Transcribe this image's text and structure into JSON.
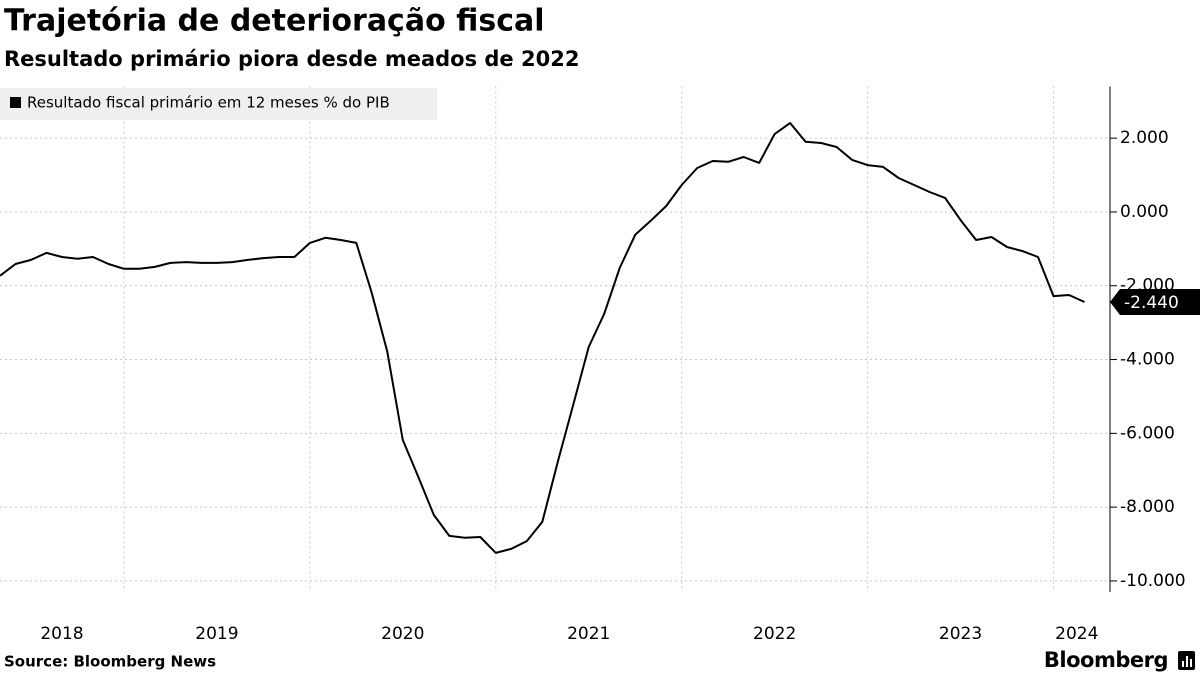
{
  "chart_data": {
    "type": "line",
    "title": "Trajetória de deterioração fiscal",
    "subtitle": "Resultado primário piora desde meados de 2022",
    "source": "Source: Bloomberg News",
    "brand": "Bloomberg",
    "legend_position": "upper left",
    "grid": true,
    "x": [
      "2018-05",
      "2018-06",
      "2018-07",
      "2018-08",
      "2018-09",
      "2018-10",
      "2018-11",
      "2018-12",
      "2019-01",
      "2019-02",
      "2019-03",
      "2019-04",
      "2019-05",
      "2019-06",
      "2019-07",
      "2019-08",
      "2019-09",
      "2019-10",
      "2019-11",
      "2019-12",
      "2020-01",
      "2020-02",
      "2020-03",
      "2020-04",
      "2020-05",
      "2020-06",
      "2020-07",
      "2020-08",
      "2020-09",
      "2020-10",
      "2020-11",
      "2020-12",
      "2021-01",
      "2021-02",
      "2021-03",
      "2021-04",
      "2021-05",
      "2021-06",
      "2021-07",
      "2021-08",
      "2021-09",
      "2021-10",
      "2021-11",
      "2021-12",
      "2022-01",
      "2022-02",
      "2022-03",
      "2022-04",
      "2022-05",
      "2022-06",
      "2022-07",
      "2022-08",
      "2022-09",
      "2022-10",
      "2022-11",
      "2022-12",
      "2023-01",
      "2023-02",
      "2023-03",
      "2023-04",
      "2023-05",
      "2023-06",
      "2023-07",
      "2023-08",
      "2023-09",
      "2023-10",
      "2023-11",
      "2023-12",
      "2024-01",
      "2024-02",
      "2024-03"
    ],
    "series": [
      {
        "name": "Resultado fiscal primário em 12 meses % do PIB",
        "color": "#000000",
        "values": [
          -1.73,
          -1.41,
          -1.3,
          -1.11,
          -1.22,
          -1.27,
          -1.22,
          -1.41,
          -1.54,
          -1.54,
          -1.49,
          -1.38,
          -1.36,
          -1.38,
          -1.38,
          -1.36,
          -1.3,
          -1.25,
          -1.22,
          -1.22,
          -0.84,
          -0.7,
          -0.76,
          -0.84,
          -2.2,
          -3.79,
          -6.18,
          -7.18,
          -8.21,
          -8.78,
          -8.83,
          -8.81,
          -9.24,
          -9.13,
          -8.92,
          -8.4,
          -6.78,
          -5.23,
          -3.66,
          -2.76,
          -1.52,
          -0.62,
          -0.24,
          0.16,
          0.73,
          1.19,
          1.38,
          1.36,
          1.49,
          1.33,
          2.11,
          2.41,
          1.9,
          1.87,
          1.76,
          1.41,
          1.27,
          1.22,
          0.92,
          0.73,
          0.54,
          0.38,
          -0.22,
          -0.76,
          -0.68,
          -0.95,
          -1.06,
          -1.22,
          -2.28,
          -2.25,
          -2.44
        ],
        "value_labels": [
          null,
          null,
          null,
          null,
          null,
          null,
          null,
          null,
          null,
          null,
          null,
          null,
          null,
          null,
          null,
          null,
          null,
          null,
          null,
          null,
          null,
          null,
          null,
          null,
          null,
          null,
          null,
          null,
          null,
          null,
          null,
          null,
          null,
          null,
          null,
          null,
          null,
          null,
          null,
          null,
          null,
          null,
          null,
          null,
          null,
          null,
          null,
          null,
          null,
          null,
          null,
          null,
          null,
          null,
          null,
          null,
          null,
          null,
          null,
          null,
          null,
          null,
          null,
          null,
          null,
          null,
          null,
          null,
          null,
          null,
          "-2.440"
        ]
      }
    ],
    "xlim": [
      "2018-05",
      "2024-04"
    ],
    "xticks": [
      2018,
      2019,
      2020,
      2021,
      2022,
      2023,
      2024
    ],
    "ylim": [
      -10.3,
      3.4
    ],
    "yticks": [
      {
        "value": 2,
        "label": "2.000"
      },
      {
        "value": 0,
        "label": "0.000"
      },
      {
        "value": -2,
        "label": "-2.000"
      },
      {
        "value": -4,
        "label": "-4.000"
      },
      {
        "value": -6,
        "label": "-6.000"
      },
      {
        "value": -8,
        "label": "-8.000"
      },
      {
        "value": -10,
        "label": "-10.000"
      }
    ]
  }
}
